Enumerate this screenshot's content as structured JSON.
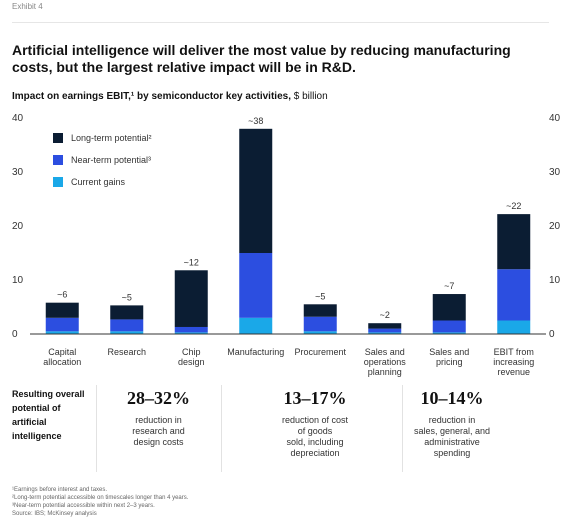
{
  "exhibit": "Exhibit 4",
  "title": "Artificial intelligence will deliver the most value by reducing manufacturing costs, but the largest relative impact will be in R&D.",
  "subtitle_bold": "Impact on earnings EBIT,¹ by semiconductor key activities,",
  "subtitle_unit": " $ billion",
  "chart_data": {
    "type": "bar",
    "stacked": true,
    "categories": [
      [
        "Capital",
        "allocation"
      ],
      [
        "Research"
      ],
      [
        "Chip",
        "design"
      ],
      [
        "Manufacturing"
      ],
      [
        "Procurement"
      ],
      [
        "Sales and",
        "operations",
        "planning"
      ],
      [
        "Sales and",
        "pricing"
      ],
      [
        "EBIT from",
        "increasing",
        "revenue"
      ]
    ],
    "series": [
      {
        "name": "Current gains",
        "color": "#1aa8e8",
        "values": [
          0.5,
          0.5,
          0.3,
          3.0,
          0.5,
          0.3,
          0.3,
          2.5
        ]
      },
      {
        "name": "Near-term potential³",
        "color": "#2c4ee0",
        "values": [
          2.5,
          2.2,
          1.0,
          12.0,
          2.7,
          0.7,
          2.2,
          9.5
        ]
      },
      {
        "name": "Long-term potential²",
        "color": "#0b1d33",
        "values": [
          2.8,
          2.6,
          10.5,
          23.0,
          2.3,
          1.0,
          4.9,
          10.2
        ]
      }
    ],
    "totals_labels": [
      "~6",
      "~5",
      "~12",
      "~38",
      "~5",
      "~2",
      "~7",
      "~22"
    ],
    "yticks": [
      0,
      10,
      20,
      30,
      40
    ],
    "ylim": [
      0,
      40
    ],
    "grid": false,
    "legend_position": "top-left"
  },
  "takeaways": {
    "label": "Resulting overall potential of artificial intelligence",
    "items": [
      {
        "value": "28–32%",
        "desc": "reduction in\nresearch and\ndesign costs"
      },
      {
        "value": "13–17%",
        "desc": "reduction of cost\nof goods\nsold, including\ndepreciation"
      },
      {
        "value": "10–14%",
        "desc": "reduction in\nsales, general, and\nadministrative\nspending"
      }
    ]
  },
  "footnotes": [
    "¹Earnings before interest and taxes.",
    "²Long-term potential accessible on timescales longer than 4 years.",
    "³Near-term potential accessible within next 2–3 years.",
    "Source: IBS; McKinsey analysis"
  ]
}
